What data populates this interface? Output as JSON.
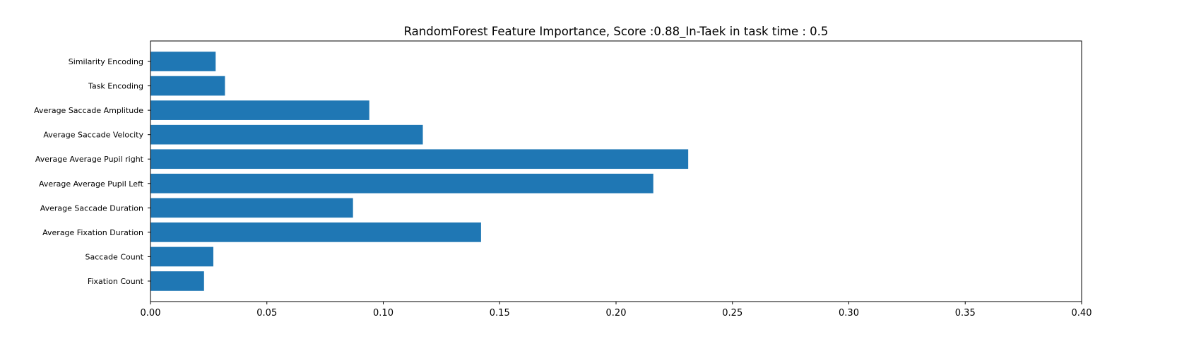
{
  "chart_data": {
    "type": "bar",
    "orientation": "horizontal",
    "title": "RandomForest Feature Importance, Score :0.88_In-Taek in task time : 0.5",
    "xlabel": "",
    "ylabel": "",
    "xlim": [
      0,
      0.4
    ],
    "x_ticks": [
      "0.00",
      "0.05",
      "0.10",
      "0.15",
      "0.20",
      "0.25",
      "0.30",
      "0.35",
      "0.40"
    ],
    "grid": false,
    "categories": [
      "Fixation Count",
      "Saccade Count",
      "Average Fixation Duration",
      "Average Saccade Duration",
      "Average Average Pupil Left",
      "Average Average Pupil right",
      "Average Saccade Velocity",
      "Average Saccade Amplitude",
      "Task Encoding",
      "Similarity Encoding"
    ],
    "values": [
      0.023,
      0.027,
      0.142,
      0.087,
      0.216,
      0.231,
      0.117,
      0.094,
      0.032,
      0.028
    ],
    "bar_color": "#1f77b4"
  }
}
